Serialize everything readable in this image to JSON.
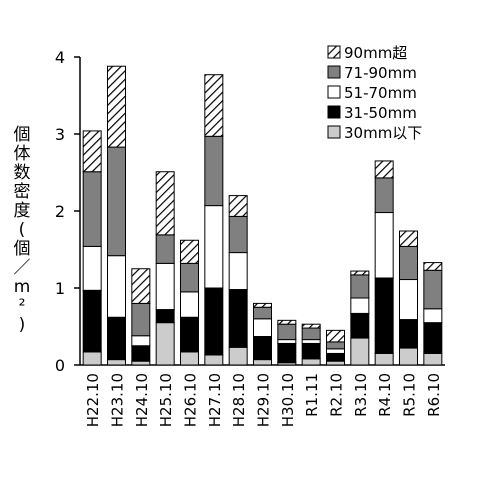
{
  "chart_data": {
    "type": "bar",
    "stacked": true,
    "title": "",
    "xlabel": "",
    "ylabel": "個体数密度(個／m²)",
    "ylim": [
      0,
      4
    ],
    "yticks": [
      "0",
      "1",
      "2",
      "3",
      "4"
    ],
    "grid": false,
    "legend_position": "top-right",
    "categories": [
      "H22.10",
      "H23.10",
      "H24.10",
      "H25.10",
      "H26.10",
      "H27.10",
      "H28.10",
      "H29.10",
      "H30.10",
      "R1.11",
      "R2.10",
      "R3.10",
      "R4.10",
      "R5.10",
      "R6.10"
    ],
    "series": [
      {
        "name": "30mm以下",
        "fill": "light-gray",
        "values": [
          0.17,
          0.07,
          0.05,
          0.55,
          0.17,
          0.13,
          0.23,
          0.07,
          0.03,
          0.08,
          0.05,
          0.35,
          0.15,
          0.22,
          0.15
        ]
      },
      {
        "name": "31-50mm",
        "fill": "black",
        "values": [
          0.8,
          0.55,
          0.2,
          0.17,
          0.45,
          0.87,
          0.75,
          0.3,
          0.25,
          0.2,
          0.1,
          0.32,
          0.98,
          0.37,
          0.4
        ]
      },
      {
        "name": "51-70mm",
        "fill": "white",
        "values": [
          0.57,
          0.8,
          0.13,
          0.6,
          0.33,
          1.07,
          0.48,
          0.23,
          0.05,
          0.05,
          0.06,
          0.2,
          0.85,
          0.52,
          0.18
        ]
      },
      {
        "name": "71-90mm",
        "fill": "gray",
        "values": [
          0.97,
          1.41,
          0.42,
          0.37,
          0.37,
          0.9,
          0.47,
          0.15,
          0.2,
          0.15,
          0.09,
          0.3,
          0.45,
          0.43,
          0.5
        ]
      },
      {
        "name": "90mm超",
        "fill": "hatched",
        "values": [
          0.53,
          1.05,
          0.45,
          0.82,
          0.3,
          0.8,
          0.27,
          0.05,
          0.05,
          0.05,
          0.15,
          0.05,
          0.22,
          0.2,
          0.1
        ]
      }
    ],
    "colors": {
      "light-gray": "#cccccc",
      "black": "#000000",
      "white": "#ffffff",
      "gray": "#808080",
      "outline": "#000000"
    }
  }
}
